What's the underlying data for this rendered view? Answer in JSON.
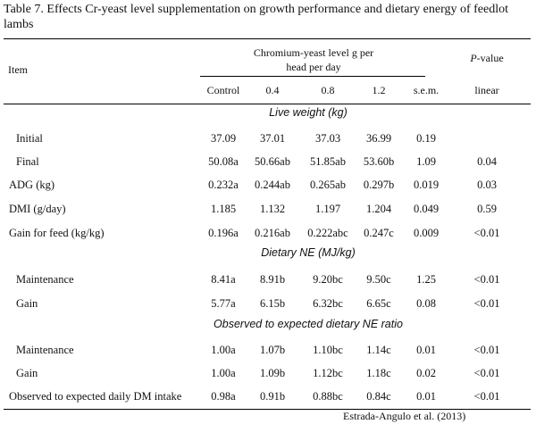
{
  "caption": "Table 7. Effects Cr-yeast level supplementation on growth performance and dietary energy of feedlot lambs",
  "header": {
    "item_label": "Item",
    "group_label": "Chromium-yeast level g per head per day",
    "pvalue_label_italic": "P",
    "pvalue_label_rest": "-value",
    "columns": [
      "Control",
      "0.4",
      "0.8",
      "1.2",
      "s.e.m.",
      "linear"
    ]
  },
  "sections": [
    {
      "title": "Live weight (kg)",
      "rows": [
        {
          "item": "Initial",
          "values": [
            "37.09",
            "37.01",
            "37.03",
            "36.99",
            "0.19",
            ""
          ]
        },
        {
          "item": "Final",
          "values": [
            "50.08a",
            "50.66ab",
            "51.85ab",
            "53.60b",
            "1.09",
            "0.04"
          ]
        },
        {
          "item": "ADG (kg)",
          "values": [
            "0.232a",
            "0.244ab",
            "0.265ab",
            "0.297b",
            "0.019",
            "0.03"
          ]
        },
        {
          "item": "DMI (g/day)",
          "values": [
            "1.185",
            "1.132",
            "1.197",
            "1.204",
            "0.049",
            "0.59"
          ]
        },
        {
          "item": "Gain for feed (kg/kg)",
          "values": [
            "0.196a",
            "0.216ab",
            "0.222abc",
            "0.247c",
            "0.009",
            "<0.01"
          ]
        }
      ]
    },
    {
      "title": "Dietary NE (MJ/kg)",
      "rows": [
        {
          "item": "Maintenance",
          "values": [
            "8.41a",
            "8.91b",
            "9.20bc",
            "9.50c",
            "1.25",
            "<0.01"
          ]
        },
        {
          "item": "Gain",
          "values": [
            "5.77a",
            "6.15b",
            "6.32bc",
            "6.65c",
            "0.08",
            "<0.01"
          ]
        }
      ]
    },
    {
      "title": "Observed to expected dietary NE ratio",
      "rows": [
        {
          "item": "Maintenance",
          "values": [
            "1.00a",
            "1.07b",
            "1.10bc",
            "1.14c",
            "0.01",
            "<0.01"
          ]
        },
        {
          "item": "Gain",
          "values": [
            "1.00a",
            "1.09b",
            "1.12bc",
            "1.18c",
            "0.02",
            "<0.01"
          ]
        },
        {
          "item": "Observed to expected daily DM intake",
          "values": [
            "0.98a",
            "0.91b",
            "0.88bc",
            "0.84c",
            "0.01",
            "<0.01"
          ]
        }
      ]
    }
  ],
  "source": "Estrada-Angulo et al. (2013)"
}
